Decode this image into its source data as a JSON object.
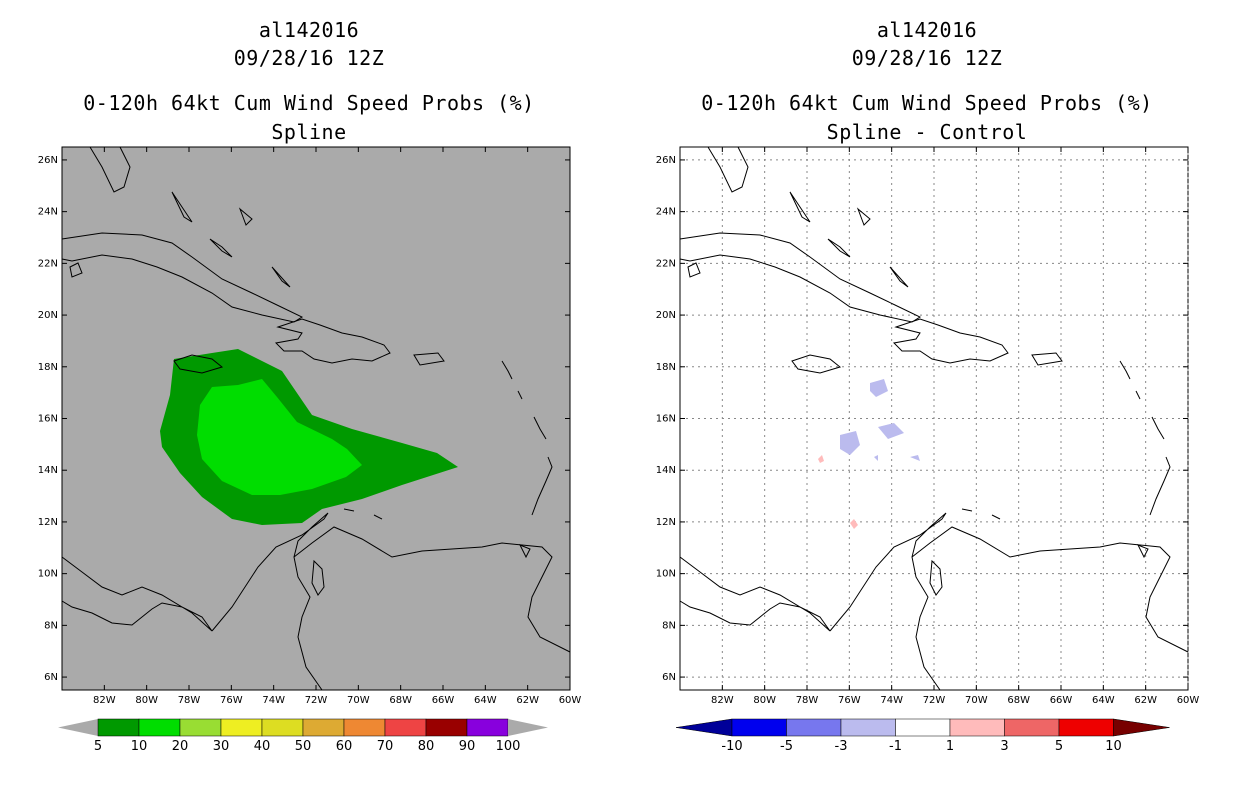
{
  "left_panel": {
    "storm_id": "al142016",
    "datetime": "09/28/16 12Z",
    "product": "0-120h 64kt Cum Wind Speed Probs (%)",
    "subtitle": "Spline",
    "colorbar_labels": [
      "5",
      "10",
      "20",
      "30",
      "40",
      "50",
      "60",
      "70",
      "80",
      "90",
      "100"
    ],
    "colorbar_colors": [
      "#009900",
      "#00dd00",
      "#99dd33",
      "#eeee22",
      "#dddd22",
      "#ddaa33",
      "#ee8833",
      "#ee4444",
      "#990000",
      "#8800dd"
    ]
  },
  "right_panel": {
    "storm_id": "al142016",
    "datetime": "09/28/16 12Z",
    "product": "0-120h 64kt Cum Wind Speed Probs (%)",
    "subtitle": "Spline - Control",
    "colorbar_labels": [
      "-10",
      "-5",
      "-3",
      "-1",
      "1",
      "3",
      "5",
      "10"
    ],
    "colorbar_colors": [
      "#000099",
      "#0000ee",
      "#7777ee",
      "#bbbbee",
      "#ffffff",
      "#ffbbbb",
      "#ee6666",
      "#ee0000",
      "#770000"
    ]
  },
  "map": {
    "lat_labels": [
      "26N",
      "24N",
      "22N",
      "20N",
      "18N",
      "16N",
      "14N",
      "12N",
      "10N",
      "8N",
      "6N"
    ],
    "lon_labels": [
      "82W",
      "80W",
      "78W",
      "76W",
      "74W",
      "72W",
      "70W",
      "68W",
      "66W",
      "64W",
      "62W",
      "60W"
    ],
    "lon_range": [
      -84,
      -60
    ],
    "lat_range": [
      5.5,
      26.5
    ],
    "background_left": "#aaaaaa",
    "background_right": "#ffffff"
  }
}
